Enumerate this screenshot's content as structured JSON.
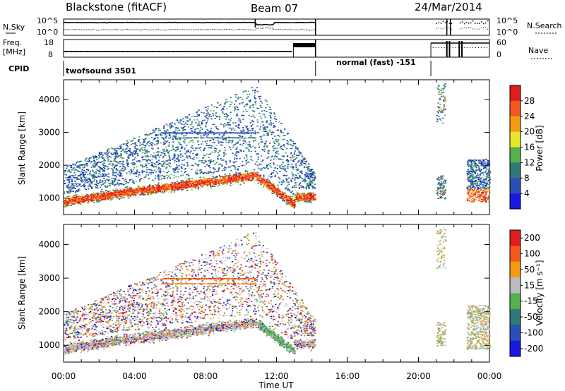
{
  "header": {
    "station": "Blackstone (fitACF)",
    "beam": "Beam 07",
    "date": "24/Mar/2014"
  },
  "strips": {
    "nsky_label": "N.Sky",
    "nsearch_label": "N.Search",
    "nsky_ticks": [
      "10^5",
      "10^0"
    ],
    "nsearch_ticks": [
      "10^5",
      "10^0"
    ],
    "freq_label_1": "Freq.",
    "freq_label_2": "[MHz]",
    "freq_ticks": [
      "18",
      "8"
    ],
    "nave_label": "Nave",
    "nave_ticks": [
      "60",
      "0"
    ],
    "cpid_label": "CPID",
    "cpid_segments": [
      {
        "text": "twofsound 3501",
        "start_hour": 0.0,
        "end_hour": 14.2
      },
      {
        "text": "normal (fast) -151",
        "start_hour": 14.2,
        "end_hour": 20.7
      }
    ]
  },
  "chart_data": [
    {
      "type": "heatmap",
      "name": "power",
      "ylabel": "Slant Range [km]",
      "xlabel": "",
      "x_ticks": [
        "00:00",
        "04:00",
        "08:00",
        "12:00",
        "16:00",
        "20:00",
        "00:00"
      ],
      "xlim_hours": [
        0,
        24
      ],
      "ylim_km": [
        500,
        4600
      ],
      "y_ticks": [
        1000,
        2000,
        3000,
        4000
      ],
      "colorbar_label": "Power [dB]",
      "colorbar_ticks": [
        4,
        8,
        12,
        16,
        20,
        24,
        28
      ],
      "colorbar_colors": [
        "#1a1adf",
        "#2a50b8",
        "#2f7a78",
        "#55b24c",
        "#e8e82a",
        "#f39c12",
        "#f25a1e",
        "#e01c1c"
      ],
      "data_gaps_hours": [
        [
          14.2,
          20.7
        ],
        [
          21.6,
          22.7
        ]
      ]
    },
    {
      "type": "heatmap",
      "name": "velocity",
      "ylabel": "Slant Range [km]",
      "xlabel": "Time UT",
      "x_ticks": [
        "00:00",
        "04:00",
        "08:00",
        "12:00",
        "16:00",
        "20:00",
        "00:00"
      ],
      "xlim_hours": [
        0,
        24
      ],
      "ylim_km": [
        500,
        4600
      ],
      "y_ticks": [
        1000,
        2000,
        3000,
        4000
      ],
      "colorbar_label": "Velocity [m s⁻¹]",
      "colorbar_ticks": [
        200,
        100,
        50,
        15,
        -15,
        -50,
        -100,
        -200
      ],
      "colorbar_colors": [
        "#1a1adf",
        "#2a50b8",
        "#2f7a78",
        "#55b24c",
        "#bcbcbc",
        "#f39c12",
        "#f25a1e",
        "#e01c1c"
      ],
      "data_gaps_hours": [
        [
          14.2,
          20.7
        ],
        [
          21.6,
          22.7
        ]
      ]
    }
  ]
}
